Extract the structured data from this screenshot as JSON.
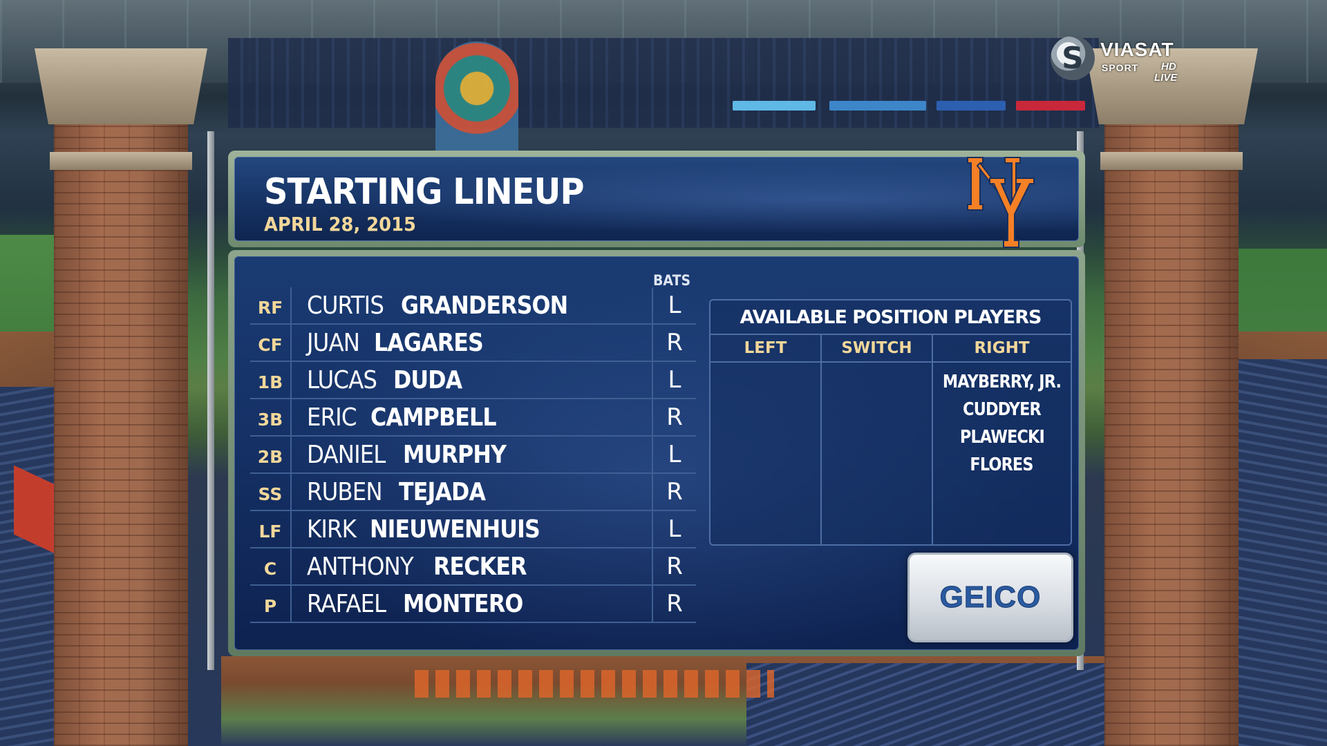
{
  "broadcaster": {
    "logo_glyph": "S",
    "name": "VIASAT",
    "sub": "SPORT",
    "hd": "HD",
    "live": "LIVE"
  },
  "header": {
    "title": "STARTING LINEUP",
    "date": "APRIL 28, 2015",
    "team_logo": "ny-mets-logo-icon",
    "team_logo_color": "#f58026"
  },
  "lineup": {
    "bats_label": "BATS",
    "players": [
      {
        "pos": "RF",
        "first": "CURTIS",
        "last": "GRANDERSON",
        "bats": "L"
      },
      {
        "pos": "CF",
        "first": "JUAN",
        "last": "LAGARES",
        "bats": "R"
      },
      {
        "pos": "1B",
        "first": "LUCAS",
        "last": "DUDA",
        "bats": "L"
      },
      {
        "pos": "3B",
        "first": "ERIC",
        "last": "CAMPBELL",
        "bats": "R"
      },
      {
        "pos": "2B",
        "first": "DANIEL",
        "last": "MURPHY",
        "bats": "L"
      },
      {
        "pos": "SS",
        "first": "RUBEN",
        "last": "TEJADA",
        "bats": "R"
      },
      {
        "pos": "LF",
        "first": "KIRK",
        "last": "NIEUWENHUIS",
        "bats": "L"
      },
      {
        "pos": "C",
        "first": "ANTHONY",
        "last": "RECKER",
        "bats": "R"
      },
      {
        "pos": "P",
        "first": "RAFAEL",
        "last": "MONTERO",
        "bats": "R"
      }
    ]
  },
  "available": {
    "title": "AVAILABLE POSITION PLAYERS",
    "columns": [
      {
        "label": "LEFT",
        "players": []
      },
      {
        "label": "SWITCH",
        "players": []
      },
      {
        "label": "RIGHT",
        "players": [
          "MAYBERRY, JR.",
          "CUDDYER",
          "PLAWECKI",
          "FLORES"
        ]
      }
    ]
  },
  "sponsor": {
    "name": "GEICO",
    "color": "#2a5aa0"
  },
  "colors": {
    "panel_blue": "#173466",
    "gold_text": "#f2d79a",
    "frame_green": "#8ea58c"
  }
}
